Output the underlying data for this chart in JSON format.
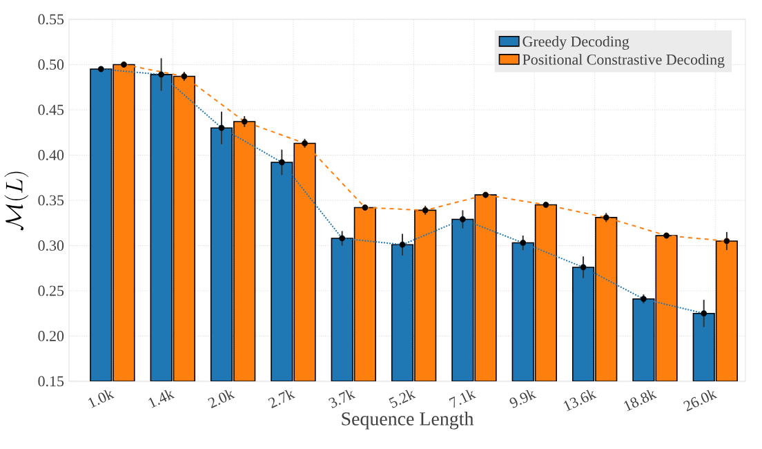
{
  "chart_data": {
    "type": "bar",
    "xlabel": "Sequence Length",
    "ylabel": "\\mathcal{M}(L)",
    "categories": [
      "1.0k",
      "1.4k",
      "2.0k",
      "2.7k",
      "3.7k",
      "5.2k",
      "7.1k",
      "9.9k",
      "13.6k",
      "18.8k",
      "26.0k"
    ],
    "series": [
      {
        "name": "Greedy Decoding",
        "color": "#1f77b4",
        "values": [
          0.495,
          0.489,
          0.43,
          0.392,
          0.308,
          0.301,
          0.329,
          0.303,
          0.276,
          0.241,
          0.225
        ],
        "errors": [
          0.002,
          0.018,
          0.018,
          0.014,
          0.008,
          0.012,
          0.01,
          0.008,
          0.012,
          0.005,
          0.015
        ]
      },
      {
        "name": "Positional Constrastive Decoding",
        "color": "#ff7f0e",
        "values": [
          0.5,
          0.487,
          0.437,
          0.413,
          0.342,
          0.339,
          0.356,
          0.345,
          0.331,
          0.311,
          0.305
        ],
        "errors": [
          0.002,
          0.005,
          0.006,
          0.005,
          0.003,
          0.005,
          0.003,
          0.003,
          0.005,
          0.003,
          0.01
        ]
      },
      {
        "type": "line",
        "color": "#1f77b4",
        "line_style": "dotted",
        "marker": "circle",
        "values": [
          0.495,
          0.489,
          0.43,
          0.392,
          0.308,
          0.301,
          0.329,
          0.303,
          0.276,
          0.241,
          0.225
        ]
      },
      {
        "type": "line",
        "color": "#ff7f0e",
        "line_style": "dashed",
        "marker": "circle",
        "values": [
          0.5,
          0.487,
          0.437,
          0.413,
          0.342,
          0.339,
          0.356,
          0.345,
          0.331,
          0.311,
          0.305
        ]
      }
    ],
    "ylim": [
      0.15,
      0.55
    ],
    "yticks": [
      {
        "value": 0.15,
        "label": "0.15"
      },
      {
        "value": 0.2,
        "label": "0.20"
      },
      {
        "value": 0.25,
        "label": "0.25"
      },
      {
        "value": 0.3,
        "label": "0.30"
      },
      {
        "value": 0.35,
        "label": "0.35"
      },
      {
        "value": 0.4,
        "label": "0.40"
      },
      {
        "value": 0.45,
        "label": "0.45"
      },
      {
        "value": 0.5,
        "label": "0.50"
      },
      {
        "value": 0.55,
        "label": "0.55"
      }
    ],
    "grid": true,
    "legend": "top right"
  }
}
